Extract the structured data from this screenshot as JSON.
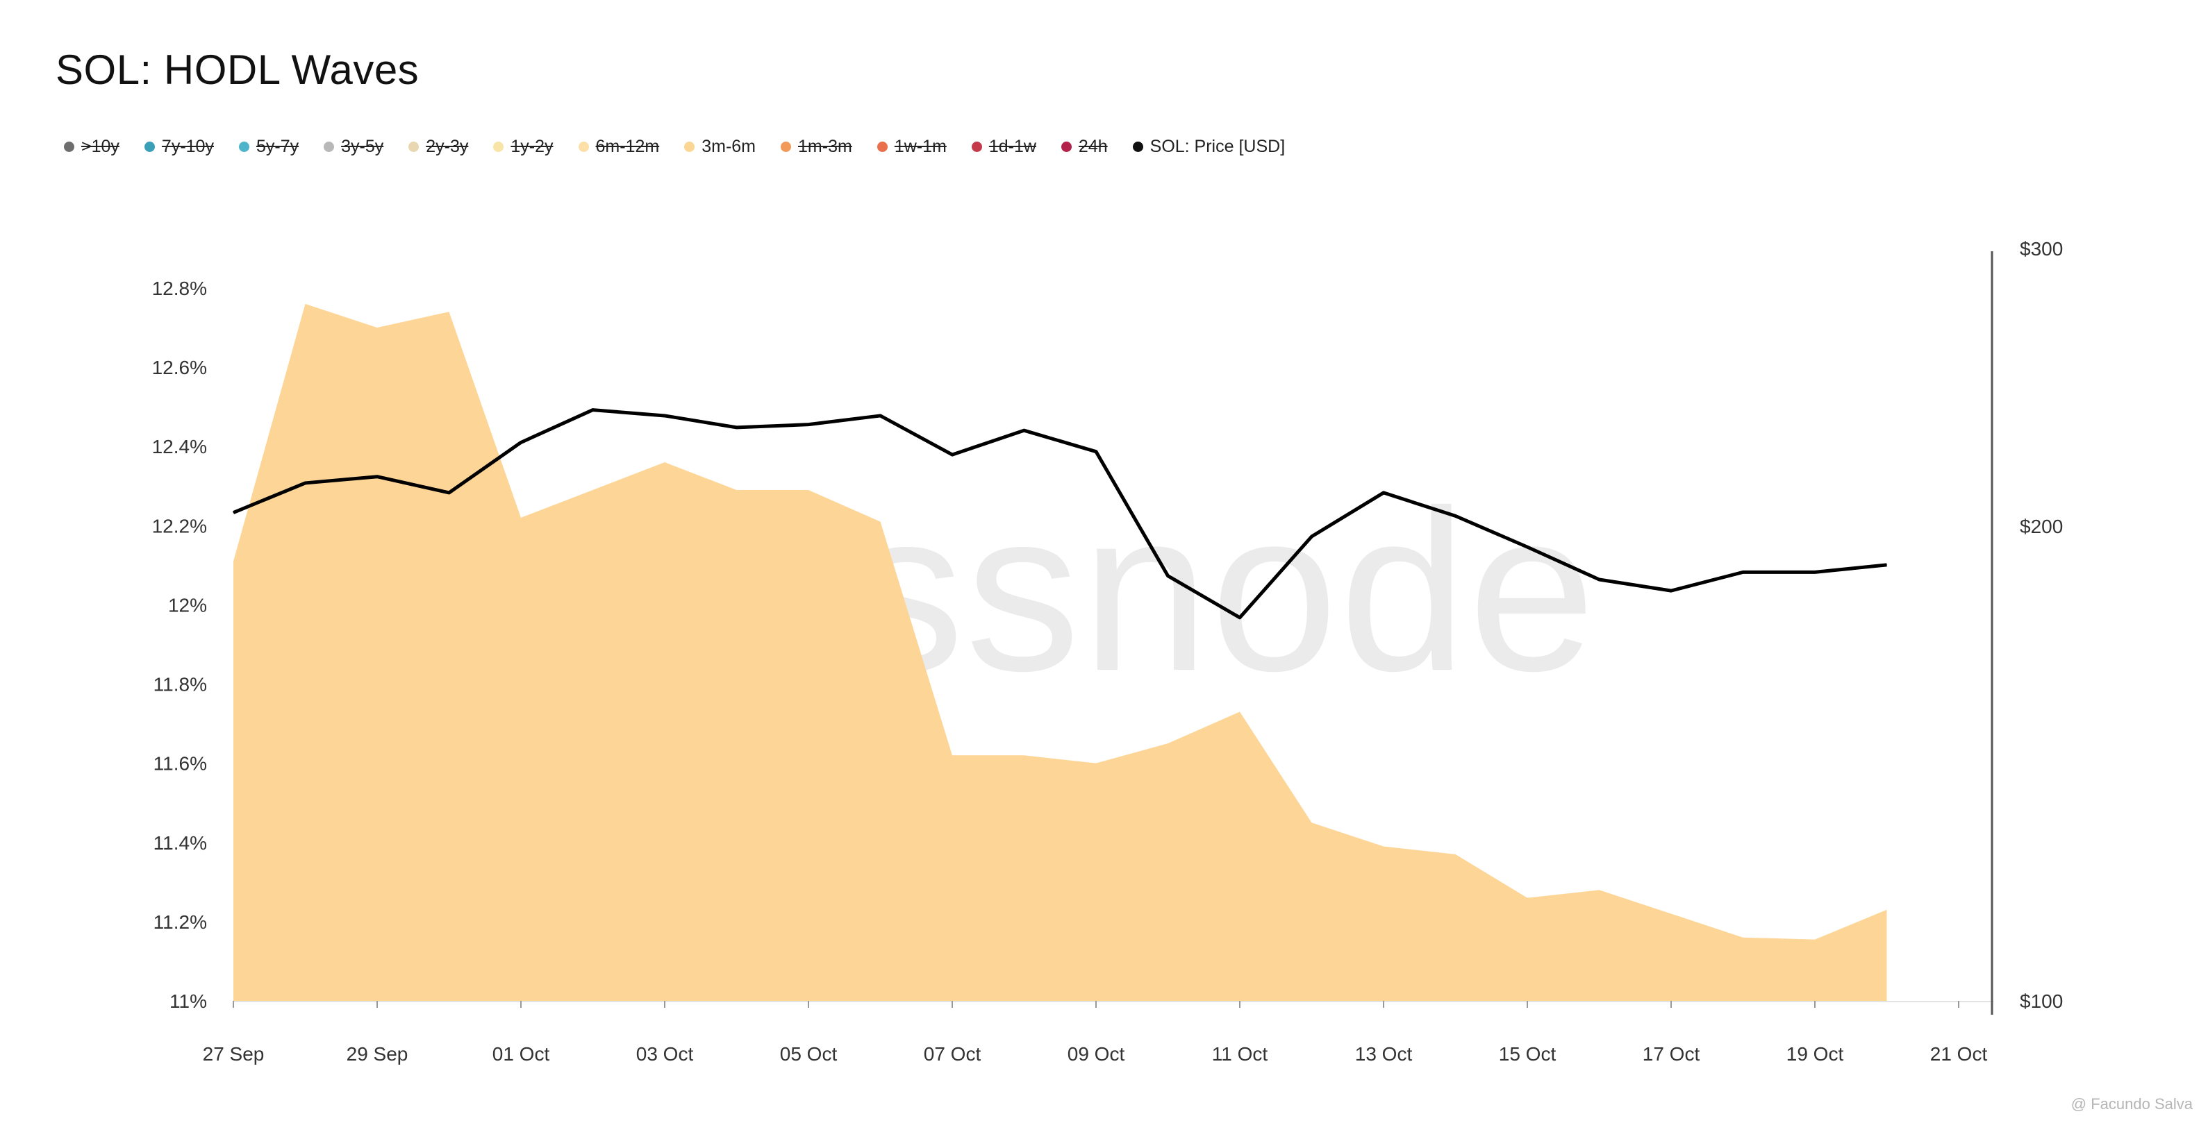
{
  "title": "SOL: HODL Waves",
  "legend": [
    {
      "label": ">10y",
      "color": "#6e6e6e",
      "active": false
    },
    {
      "label": "7y-10y",
      "color": "#3aa0b8",
      "active": false
    },
    {
      "label": "5y-7y",
      "color": "#4fb3c9",
      "active": false
    },
    {
      "label": "3y-5y",
      "color": "#b8b8b8",
      "active": false
    },
    {
      "label": "2y-3y",
      "color": "#e8d7b0",
      "active": false
    },
    {
      "label": "1y-2y",
      "color": "#f9e4a8",
      "active": false
    },
    {
      "label": "6m-12m",
      "color": "#fde0a8",
      "active": false
    },
    {
      "label": "3m-6m",
      "color": "#fbd695",
      "active": true
    },
    {
      "label": "1m-3m",
      "color": "#f29a5a",
      "active": false
    },
    {
      "label": "1w-1m",
      "color": "#ea6f4d",
      "active": false
    },
    {
      "label": "1d-1w",
      "color": "#c43a4a",
      "active": false
    },
    {
      "label": "24h",
      "color": "#b3224b",
      "active": false
    },
    {
      "label": "SOL: Price [USD]",
      "color": "#111111",
      "active": true
    }
  ],
  "watermark": "glassnode",
  "credit": "@ Facundo Salva",
  "chart_data": {
    "type": "area",
    "x": [
      "27 Sep",
      "28 Sep",
      "29 Sep",
      "30 Sep",
      "01 Oct",
      "02 Oct",
      "03 Oct",
      "04 Oct",
      "05 Oct",
      "06 Oct",
      "07 Oct",
      "08 Oct",
      "09 Oct",
      "10 Oct",
      "11 Oct",
      "12 Oct",
      "13 Oct",
      "14 Oct",
      "15 Oct",
      "16 Oct",
      "17 Oct",
      "18 Oct",
      "19 Oct",
      "20 Oct"
    ],
    "x_ticks": [
      "27 Sep",
      "29 Sep",
      "01 Oct",
      "03 Oct",
      "05 Oct",
      "07 Oct",
      "09 Oct",
      "11 Oct",
      "13 Oct",
      "15 Oct",
      "17 Oct",
      "19 Oct",
      "21 Oct"
    ],
    "series": [
      {
        "name": "3m-6m",
        "axis": "left",
        "color": "#fdd697",
        "values": [
          12.11,
          12.76,
          12.7,
          12.74,
          12.22,
          12.29,
          12.36,
          12.29,
          12.29,
          12.21,
          11.62,
          11.62,
          11.6,
          11.65,
          11.73,
          11.45,
          11.39,
          11.37,
          11.26,
          11.28,
          11.22,
          11.16,
          11.155,
          11.23
        ]
      },
      {
        "name": "SOL: Price [USD]",
        "axis": "right",
        "color": "#000000",
        "values": [
          204,
          213,
          215,
          210,
          226,
          237,
          235,
          231,
          232,
          235,
          222,
          230,
          223,
          186,
          175,
          197,
          210,
          203,
          194,
          185,
          182,
          187,
          187,
          189
        ]
      }
    ],
    "y_left": {
      "ticks": [
        "11%",
        "11.2%",
        "11.4%",
        "11.6%",
        "11.8%",
        "12%",
        "12.2%",
        "12.4%",
        "12.6%",
        "12.8%"
      ],
      "lim": [
        11.0,
        12.8
      ]
    },
    "y_right": {
      "ticks": [
        "$100",
        "$200",
        "$300"
      ],
      "lim": [
        100,
        300
      ],
      "scale": "log"
    },
    "grid": false
  }
}
